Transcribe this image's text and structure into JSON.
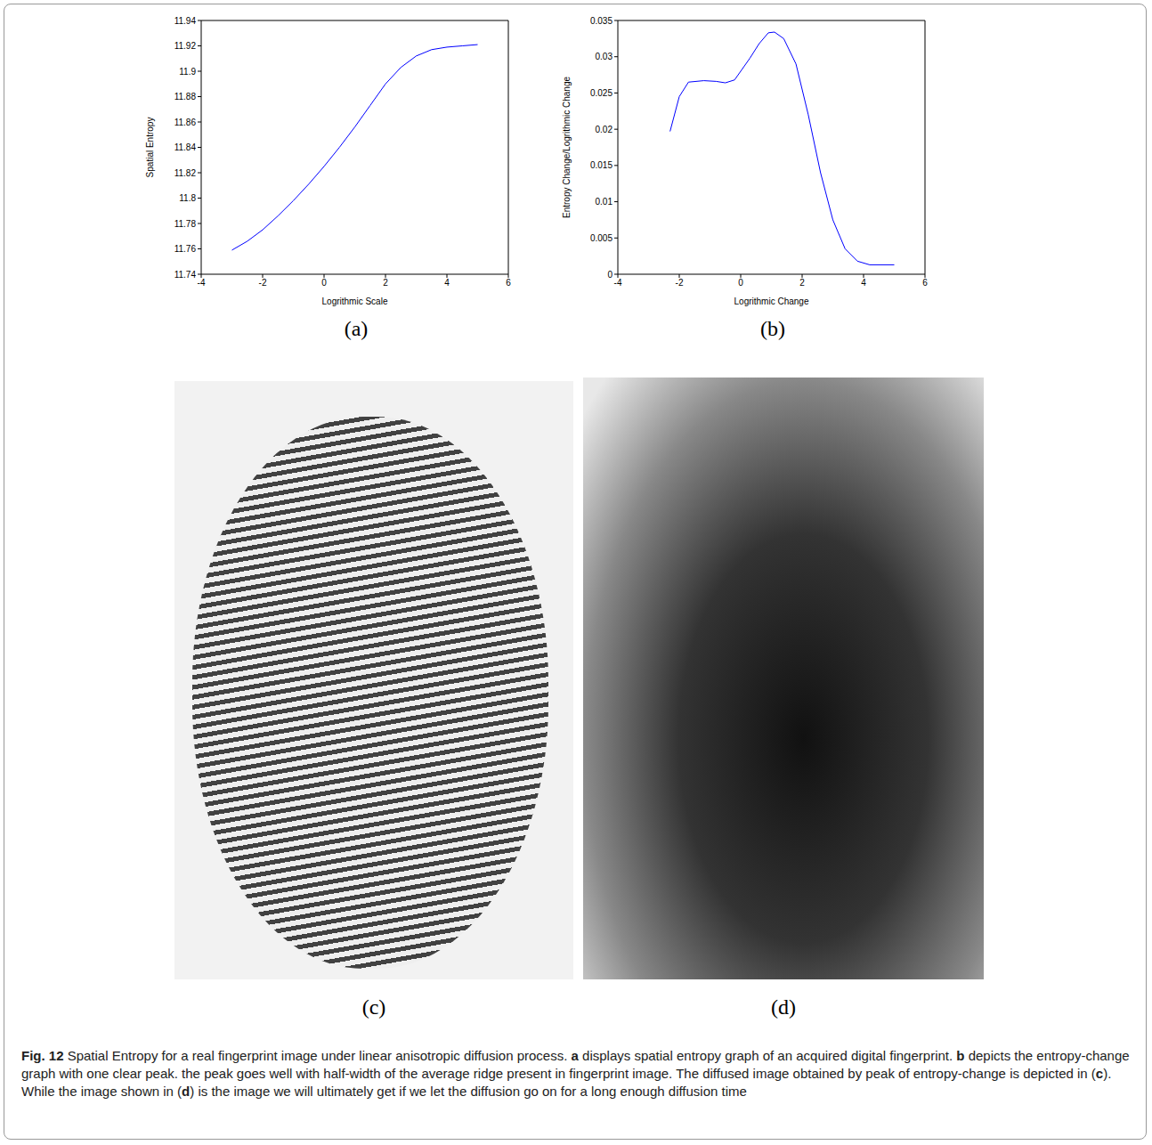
{
  "chart_data": [
    {
      "type": "line",
      "label": "(a)",
      "x_label": "Logrithmic Scale",
      "y_label": "Spatial Entropy",
      "x": [
        -3,
        -2.5,
        -2,
        -1.5,
        -1,
        -0.5,
        0,
        0.5,
        1,
        1.5,
        2,
        2.5,
        3,
        3.5,
        4,
        4.5,
        5
      ],
      "series": [
        {
          "name": "Spatial Entropy",
          "color": "#0000ff",
          "values": [
            11.759,
            11.766,
            11.775,
            11.786,
            11.798,
            11.811,
            11.825,
            11.84,
            11.856,
            11.873,
            11.89,
            11.903,
            11.912,
            11.917,
            11.919,
            11.92,
            11.921
          ]
        }
      ],
      "xlim": [
        -4,
        6
      ],
      "xticks": [
        -4,
        -2,
        0,
        2,
        4,
        6
      ],
      "ylim": [
        11.74,
        11.94
      ],
      "yticks": [
        11.74,
        11.76,
        11.78,
        11.8,
        11.82,
        11.84,
        11.86,
        11.88,
        11.9,
        11.92,
        11.94
      ],
      "grid": false
    },
    {
      "type": "line",
      "label": "(b)",
      "x_label": "Logrithmic Change",
      "y_label": "Entropy Change/Logrithmic Change",
      "x": [
        -2.3,
        -2,
        -1.7,
        -1.2,
        -0.8,
        -0.5,
        -0.2,
        0,
        0.3,
        0.6,
        0.9,
        1.1,
        1.4,
        1.8,
        2.2,
        2.6,
        3,
        3.4,
        3.8,
        4.2,
        5
      ],
      "series": [
        {
          "name": "Entropy Change",
          "color": "#0000ff",
          "values": [
            0.0197,
            0.0245,
            0.0265,
            0.0267,
            0.0266,
            0.0264,
            0.0268,
            0.028,
            0.0298,
            0.0318,
            0.0333,
            0.0334,
            0.0325,
            0.029,
            0.022,
            0.014,
            0.0075,
            0.0035,
            0.0018,
            0.0013,
            0.0013
          ]
        }
      ],
      "xlim": [
        -4,
        6
      ],
      "xticks": [
        -4,
        -2,
        0,
        2,
        4,
        6
      ],
      "ylim": [
        0,
        0.035
      ],
      "yticks": [
        0,
        0.005,
        0.01,
        0.015,
        0.02,
        0.025,
        0.03,
        0.035
      ],
      "grid": false
    }
  ],
  "images": [
    {
      "label": "(c)"
    },
    {
      "label": "(d)"
    }
  ],
  "caption": [
    {
      "text": "Fig. 12",
      "bold": true
    },
    {
      "text": " Spatial Entropy for a real fingerprint image under linear anisotropic diffusion process. ",
      "bold": false
    },
    {
      "text": "a",
      "bold": true
    },
    {
      "text": " displays spatial entropy graph of an acquired digital fingerprint. ",
      "bold": false
    },
    {
      "text": "b",
      "bold": true
    },
    {
      "text": " depicts the entropy-change graph with one clear peak. the peak goes well with half-width of the average ridge present in fingerprint image. The diffused image obtained by peak of entropy-change is depicted in (",
      "bold": false
    },
    {
      "text": "c",
      "bold": true
    },
    {
      "text": "). While the image shown in (",
      "bold": false
    },
    {
      "text": "d",
      "bold": true
    },
    {
      "text": ") is the image we will ultimately get if we let the diffusion go on for a long enough diffusion time",
      "bold": false
    }
  ]
}
